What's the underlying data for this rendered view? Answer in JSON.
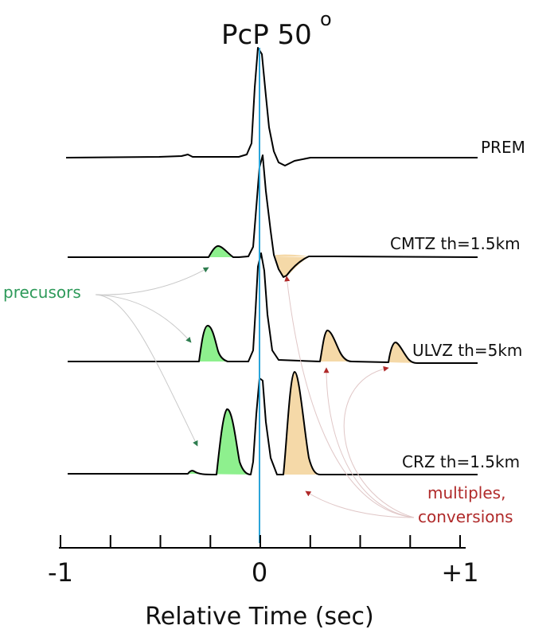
{
  "title": {
    "main": "PcP 50",
    "superscript": "o"
  },
  "colors": {
    "trace": "#000000",
    "reference_line": "#2aa4d9",
    "precursor_fill": "#8ef08e",
    "multiple_fill": "#f5d9a8",
    "precursor_text": "#2e9a5a",
    "multiple_text": "#b02a2a"
  },
  "traces": [
    {
      "label": "PREM"
    },
    {
      "label": "CMTZ th=1.5km"
    },
    {
      "label": "ULVZ th=5km"
    },
    {
      "label": "CRZ th=1.5km"
    }
  ],
  "annotations": {
    "precursors": "precusors",
    "multiples_line1": "multiples,",
    "multiples_line2": "conversions"
  },
  "axis": {
    "title": "Relative Time (sec)",
    "range": [
      -1,
      1
    ],
    "tick_labels": [
      "-1",
      "0",
      "+1"
    ],
    "minor_tick_step": 0.25
  }
}
